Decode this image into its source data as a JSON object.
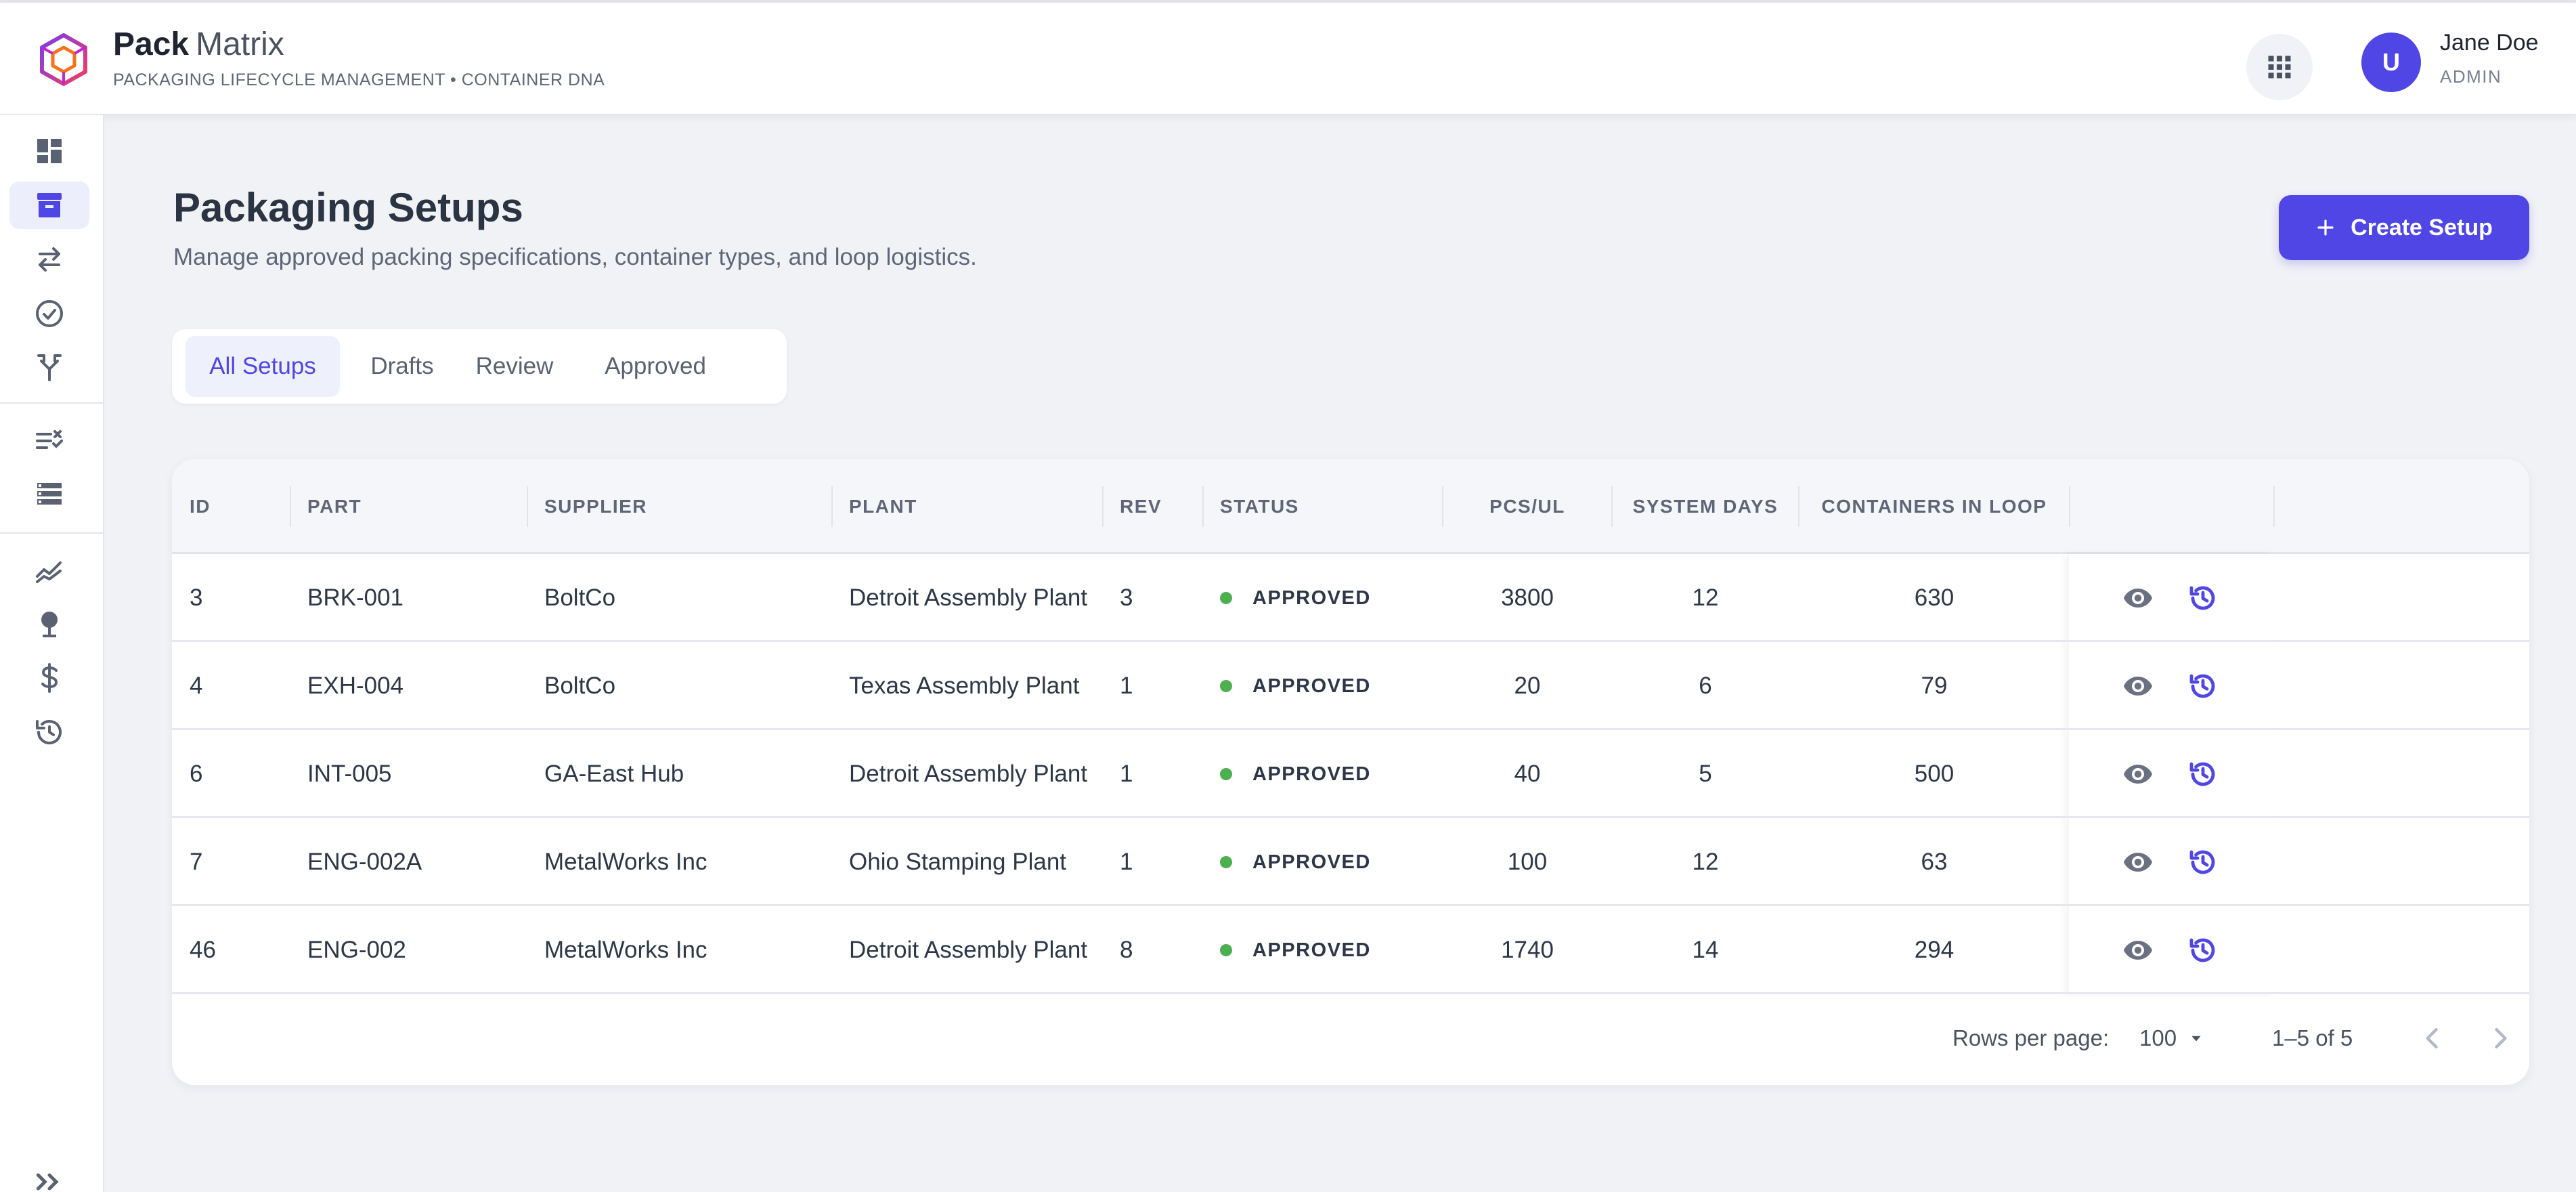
{
  "header": {
    "brand_bold": "Pack",
    "brand_light": "Matrix",
    "tagline": "PACKAGING LIFECYCLE MANAGEMENT • CONTAINER DNA",
    "apps_icon": "grid-apps-icon",
    "user": {
      "initial": "U",
      "name": "Jane Doe",
      "role": "ADMIN"
    }
  },
  "sidebar": {
    "items": [
      {
        "icon": "dashboard-icon",
        "active": false
      },
      {
        "icon": "archive-box-icon",
        "active": true
      },
      {
        "icon": "swap-arrows-icon",
        "active": false
      },
      {
        "icon": "check-circle-icon",
        "active": false
      },
      {
        "icon": "fork-icon",
        "active": false
      },
      {
        "icon": "checklist-icon",
        "active": false
      },
      {
        "icon": "storage-icon",
        "active": false
      },
      {
        "icon": "trend-chart-icon",
        "active": false
      },
      {
        "icon": "pin-icon",
        "active": false
      },
      {
        "icon": "dollar-icon",
        "active": false
      },
      {
        "icon": "history-icon",
        "active": false
      }
    ],
    "collapse_icon": "double-chevron-right-icon"
  },
  "page": {
    "title": "Packaging Setups",
    "subtitle": "Manage approved packing specifications, container types, and loop logistics.",
    "create_button": "Create Setup"
  },
  "tabs": [
    {
      "label": "All Setups",
      "active": true
    },
    {
      "label": "Drafts",
      "active": false
    },
    {
      "label": "Review",
      "active": false
    },
    {
      "label": "Approved",
      "active": false
    }
  ],
  "table": {
    "columns": {
      "id": "ID",
      "part": "PART",
      "supplier": "SUPPLIER",
      "plant": "PLANT",
      "rev": "REV",
      "status": "STATUS",
      "pcs_ul": "PCS/UL",
      "system_days": "SYSTEM DAYS",
      "containers_in_loop": "CONTAINERS IN LOOP"
    },
    "rows": [
      {
        "id": "3",
        "part": "BRK-001",
        "supplier": "BoltCo",
        "plant": "Detroit Assembly Plant",
        "rev": "3",
        "status": "APPROVED",
        "pcs_ul": "3800",
        "system_days": "12",
        "containers_in_loop": "630"
      },
      {
        "id": "4",
        "part": "EXH-004",
        "supplier": "BoltCo",
        "plant": "Texas Assembly Plant",
        "rev": "1",
        "status": "APPROVED",
        "pcs_ul": "20",
        "system_days": "6",
        "containers_in_loop": "79"
      },
      {
        "id": "6",
        "part": "INT-005",
        "supplier": "GA-East Hub",
        "plant": "Detroit Assembly Plant",
        "rev": "1",
        "status": "APPROVED",
        "pcs_ul": "40",
        "system_days": "5",
        "containers_in_loop": "500"
      },
      {
        "id": "7",
        "part": "ENG-002A",
        "supplier": "MetalWorks Inc",
        "plant": "Ohio Stamping Plant",
        "rev": "1",
        "status": "APPROVED",
        "pcs_ul": "100",
        "system_days": "12",
        "containers_in_loop": "63"
      },
      {
        "id": "46",
        "part": "ENG-002",
        "supplier": "MetalWorks Inc",
        "plant": "Detroit Assembly Plant",
        "rev": "8",
        "status": "APPROVED",
        "pcs_ul": "1740",
        "system_days": "14",
        "containers_in_loop": "294"
      }
    ],
    "status_color": "#4caf50"
  },
  "pagination": {
    "rows_per_page_label": "Rows per page:",
    "rows_per_page": "100",
    "range": "1–5 of 5"
  },
  "colors": {
    "accent": "#4f46e5",
    "background": "#f1f2f6"
  }
}
